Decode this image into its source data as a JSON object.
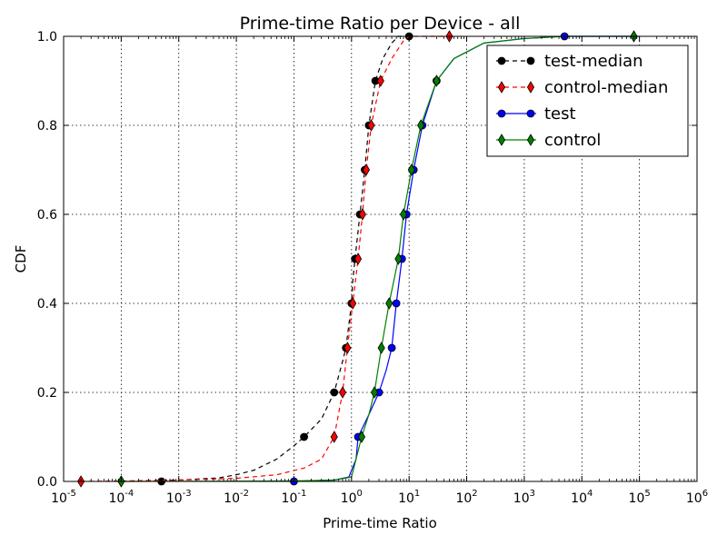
{
  "chart_data": {
    "type": "line",
    "title": "Prime-time Ratio per Device - all",
    "xlabel": "Prime-time Ratio",
    "ylabel": "CDF",
    "x_scale": "log",
    "xlim": [
      1e-05,
      1000000.0
    ],
    "ylim": [
      0.0,
      1.0
    ],
    "grid": true,
    "legend_position": "top-right",
    "x_ticks": [
      {
        "base": "10",
        "exp": "-5",
        "value": 1e-05
      },
      {
        "base": "10",
        "exp": "-4",
        "value": 0.0001
      },
      {
        "base": "10",
        "exp": "-3",
        "value": 0.001
      },
      {
        "base": "10",
        "exp": "-2",
        "value": 0.01
      },
      {
        "base": "10",
        "exp": "-1",
        "value": 0.1
      },
      {
        "base": "10",
        "exp": "0",
        "value": 1
      },
      {
        "base": "10",
        "exp": "1",
        "value": 10
      },
      {
        "base": "10",
        "exp": "2",
        "value": 100
      },
      {
        "base": "10",
        "exp": "3",
        "value": 1000
      },
      {
        "base": "10",
        "exp": "4",
        "value": 10000
      },
      {
        "base": "10",
        "exp": "5",
        "value": 100000
      },
      {
        "base": "10",
        "exp": "6",
        "value": 1000000
      }
    ],
    "y_ticks": [
      "0.0",
      "0.2",
      "0.4",
      "0.6",
      "0.8",
      "1.0"
    ],
    "series": [
      {
        "name": "test-median",
        "color": "#000000",
        "linestyle": "dashed",
        "marker": "circle",
        "curve": [
          [
            0.0001,
            0
          ],
          [
            0.001,
            0.003
          ],
          [
            0.005,
            0.008
          ],
          [
            0.01,
            0.015
          ],
          [
            0.02,
            0.025
          ],
          [
            0.05,
            0.05
          ],
          [
            0.1,
            0.08
          ],
          [
            0.15,
            0.1
          ],
          [
            0.3,
            0.14
          ],
          [
            0.5,
            0.2
          ],
          [
            0.7,
            0.27
          ],
          [
            0.8,
            0.3
          ],
          [
            1.0,
            0.4
          ],
          [
            1.05,
            0.45
          ],
          [
            1.15,
            0.5
          ],
          [
            1.4,
            0.6
          ],
          [
            1.7,
            0.7
          ],
          [
            2.0,
            0.8
          ],
          [
            2.6,
            0.9
          ],
          [
            3.5,
            0.95
          ],
          [
            5.0,
            0.985
          ],
          [
            6.5,
            1.0
          ],
          [
            10,
            1.0
          ]
        ],
        "markers": [
          [
            0.0005,
            0
          ],
          [
            0.15,
            0.1
          ],
          [
            0.5,
            0.2
          ],
          [
            0.8,
            0.3
          ],
          [
            1.0,
            0.4
          ],
          [
            1.15,
            0.5
          ],
          [
            1.4,
            0.6
          ],
          [
            1.7,
            0.7
          ],
          [
            2.0,
            0.8
          ],
          [
            2.6,
            0.9
          ],
          [
            10,
            1.0
          ]
        ]
      },
      {
        "name": "control-median",
        "color": "#ff0000",
        "linestyle": "dashed",
        "marker": "diamond",
        "curve": [
          [
            2e-05,
            0
          ],
          [
            0.0001,
            0.001
          ],
          [
            0.001,
            0.003
          ],
          [
            0.01,
            0.007
          ],
          [
            0.05,
            0.015
          ],
          [
            0.15,
            0.03
          ],
          [
            0.3,
            0.05
          ],
          [
            0.5,
            0.1
          ],
          [
            0.7,
            0.2
          ],
          [
            0.85,
            0.3
          ],
          [
            1.05,
            0.4
          ],
          [
            1.3,
            0.5
          ],
          [
            1.55,
            0.6
          ],
          [
            1.8,
            0.7
          ],
          [
            2.2,
            0.8
          ],
          [
            3.2,
            0.9
          ],
          [
            5,
            0.95
          ],
          [
            8,
            0.99
          ],
          [
            10,
            1.0
          ],
          [
            50,
            1.0
          ]
        ],
        "markers": [
          [
            2e-05,
            0
          ],
          [
            0.5,
            0.1
          ],
          [
            0.7,
            0.2
          ],
          [
            0.85,
            0.3
          ],
          [
            1.05,
            0.4
          ],
          [
            1.3,
            0.5
          ],
          [
            1.55,
            0.6
          ],
          [
            1.8,
            0.7
          ],
          [
            2.2,
            0.8
          ],
          [
            3.2,
            0.9
          ],
          [
            50,
            1.0
          ]
        ]
      },
      {
        "name": "test",
        "color": "#0000ff",
        "linestyle": "solid",
        "marker": "circle",
        "curve": [
          [
            0.1,
            0
          ],
          [
            0.5,
            0.003
          ],
          [
            0.9,
            0.01
          ],
          [
            1.2,
            0.05
          ],
          [
            1.3,
            0.1
          ],
          [
            2.0,
            0.15
          ],
          [
            3.0,
            0.2
          ],
          [
            4.0,
            0.25
          ],
          [
            5.0,
            0.3
          ],
          [
            6.0,
            0.4
          ],
          [
            7.5,
            0.5
          ],
          [
            9.0,
            0.6
          ],
          [
            12,
            0.7
          ],
          [
            17,
            0.8
          ],
          [
            30,
            0.9
          ],
          [
            60,
            0.95
          ],
          [
            200,
            0.985
          ],
          [
            1000,
            0.995
          ],
          [
            5000,
            1.0
          ],
          [
            100000,
            1.0
          ]
        ],
        "markers": [
          [
            0.1,
            0
          ],
          [
            1.3,
            0.1
          ],
          [
            3.0,
            0.2
          ],
          [
            5.0,
            0.3
          ],
          [
            6.0,
            0.4
          ],
          [
            7.5,
            0.5
          ],
          [
            9.0,
            0.6
          ],
          [
            12,
            0.7
          ],
          [
            17,
            0.8
          ],
          [
            30,
            0.9
          ],
          [
            5000,
            1.0
          ]
        ]
      },
      {
        "name": "control",
        "color": "#008000",
        "linestyle": "solid",
        "marker": "diamond",
        "curve": [
          [
            0.0001,
            0
          ],
          [
            0.1,
            0.001
          ],
          [
            0.5,
            0.003
          ],
          [
            1.0,
            0.01
          ],
          [
            1.5,
            0.1
          ],
          [
            2.0,
            0.15
          ],
          [
            2.5,
            0.2
          ],
          [
            3.3,
            0.3
          ],
          [
            4.5,
            0.4
          ],
          [
            6.5,
            0.5
          ],
          [
            8.0,
            0.6
          ],
          [
            11,
            0.7
          ],
          [
            16,
            0.8
          ],
          [
            30,
            0.9
          ],
          [
            60,
            0.95
          ],
          [
            200,
            0.985
          ],
          [
            1000,
            0.995
          ],
          [
            5000,
            1.0
          ],
          [
            80000,
            1.0
          ]
        ],
        "markers": [
          [
            0.0001,
            0
          ],
          [
            1.5,
            0.1
          ],
          [
            2.5,
            0.2
          ],
          [
            3.3,
            0.3
          ],
          [
            4.5,
            0.4
          ],
          [
            6.5,
            0.5
          ],
          [
            8.0,
            0.6
          ],
          [
            11,
            0.7
          ],
          [
            16,
            0.8
          ],
          [
            30,
            0.9
          ],
          [
            80000,
            1.0
          ]
        ]
      }
    ]
  }
}
